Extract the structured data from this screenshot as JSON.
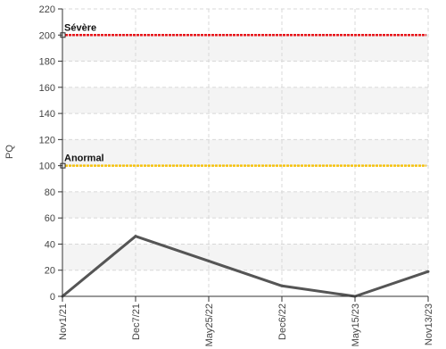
{
  "chart_data": {
    "type": "line",
    "ylabel": "PQ",
    "ylim": [
      0,
      220
    ],
    "yticks": [
      0,
      20,
      40,
      60,
      80,
      100,
      120,
      140,
      160,
      180,
      200,
      220
    ],
    "categories": [
      "Nov1/21",
      "Dec7/21",
      "May25/22",
      "Dec6/22",
      "May15/23",
      "Nov13/23"
    ],
    "series": [
      {
        "values": [
          0,
          46,
          27,
          8,
          0,
          19
        ],
        "color": "#555555"
      }
    ],
    "thresholds": [
      {
        "label": "Sévère",
        "value": 200,
        "color": "#e8161b"
      },
      {
        "label": "Anormal",
        "value": 100,
        "color": "#f5c211"
      }
    ],
    "grid": true
  }
}
